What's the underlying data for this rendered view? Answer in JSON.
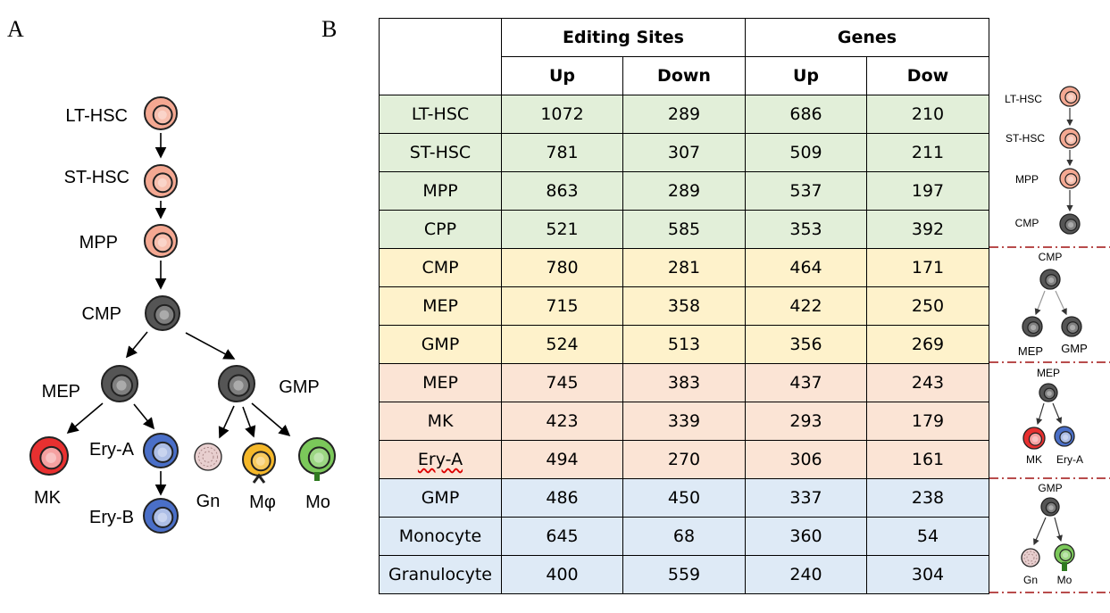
{
  "panel_labels": {
    "a": "A",
    "b": "B"
  },
  "diagram_a": {
    "nodes": [
      "LT-HSC",
      "ST-HSC",
      "MPP",
      "CMP",
      "MEP",
      "GMP",
      "MK",
      "Ery-A",
      "Ery-B",
      "Gn",
      "Mφ",
      "Mo"
    ]
  },
  "table": {
    "header_groups": [
      "Editing Sites",
      "Genes"
    ],
    "subheaders": [
      "Up",
      "Down",
      "Up",
      "Dow"
    ],
    "rows": [
      {
        "label": "LT-HSC",
        "values": [
          "1072",
          "289",
          "686",
          "210"
        ]
      },
      {
        "label": "ST-HSC",
        "values": [
          "781",
          "307",
          "509",
          "211"
        ]
      },
      {
        "label": "MPP",
        "values": [
          "863",
          "289",
          "537",
          "197"
        ]
      },
      {
        "label": "CPP",
        "values": [
          "521",
          "585",
          "353",
          "392"
        ]
      },
      {
        "label": "CMP",
        "values": [
          "780",
          "281",
          "464",
          "171"
        ]
      },
      {
        "label": "MEP",
        "values": [
          "715",
          "358",
          "422",
          "250"
        ]
      },
      {
        "label": "GMP",
        "values": [
          "524",
          "513",
          "356",
          "269"
        ]
      },
      {
        "label": "MEP",
        "values": [
          "745",
          "383",
          "437",
          "243"
        ]
      },
      {
        "label": "MK",
        "values": [
          "423",
          "339",
          "293",
          "179"
        ]
      },
      {
        "label": "Ery-A",
        "values": [
          "494",
          "270",
          "306",
          "161"
        ]
      },
      {
        "label": "GMP",
        "values": [
          "486",
          "450",
          "337",
          "238"
        ]
      },
      {
        "label": "Monocyte",
        "values": [
          "645",
          "68",
          "360",
          "54"
        ]
      },
      {
        "label": "Granulocyte",
        "values": [
          "400",
          "559",
          "240",
          "304"
        ]
      }
    ]
  },
  "side_diagrams": {
    "d1": [
      "LT-HSC",
      "ST-HSC",
      "MPP",
      "CMP"
    ],
    "d2": [
      "CMP",
      "MEP",
      "GMP"
    ],
    "d3": [
      "MEP",
      "MK",
      "Ery-A"
    ],
    "d4": [
      "GMP",
      "Gn",
      "Mo"
    ]
  },
  "colors": {
    "hsc_pink": "#f4a892",
    "progenitor_gray": "#555555",
    "mk_red": "#e83030",
    "ery_blue": "#4a6fc8",
    "gn_pink": "#e8cfcf",
    "mph_orange": "#f5b82a",
    "mo_green": "#7bc85a",
    "row_green": "#e2efd9",
    "row_yellow": "#fef2cb",
    "row_peach": "#fbe4d5",
    "row_blue": "#deeaf6",
    "divider_red": "#a01010"
  }
}
